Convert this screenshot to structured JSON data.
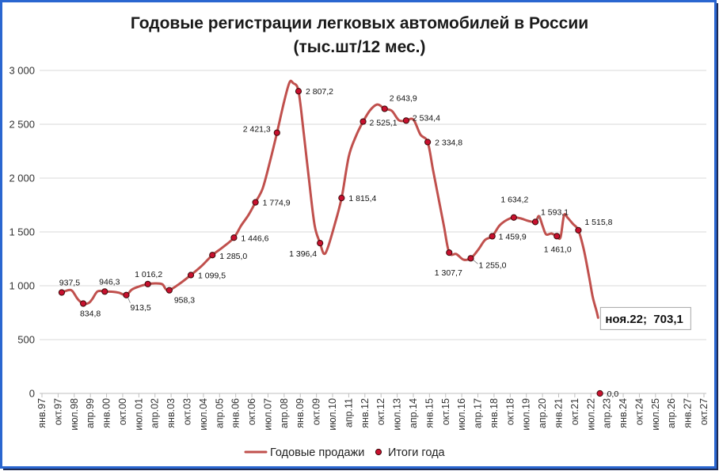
{
  "chart_data": {
    "type": "line",
    "title": "Годовые регистрации легковых автомобилей в России",
    "subtitle": "(тыс.шт/12 мес.)",
    "ylim": [
      0,
      3000
    ],
    "y_ticks": [
      {
        "value": 0,
        "label": "0"
      },
      {
        "value": 500,
        "label": "500"
      },
      {
        "value": 1000,
        "label": "1 000"
      },
      {
        "value": 1500,
        "label": "1 500"
      },
      {
        "value": 2000,
        "label": "2 000"
      },
      {
        "value": 2500,
        "label": "2 500"
      },
      {
        "value": 3000,
        "label": "3 000"
      }
    ],
    "xlim": [
      "1997-01",
      "2027-10"
    ],
    "x_ticks": [
      {
        "date": "1997-01",
        "label": "янв.97"
      },
      {
        "date": "1997-10",
        "label": "окт.97"
      },
      {
        "date": "1998-07",
        "label": "июл.98"
      },
      {
        "date": "1999-04",
        "label": "апр.99"
      },
      {
        "date": "2000-01",
        "label": "янв.00"
      },
      {
        "date": "2000-10",
        "label": "окт.00"
      },
      {
        "date": "2001-07",
        "label": "июл.01"
      },
      {
        "date": "2002-04",
        "label": "апр.02"
      },
      {
        "date": "2003-01",
        "label": "янв.03"
      },
      {
        "date": "2003-10",
        "label": "окт.03"
      },
      {
        "date": "2004-07",
        "label": "июл.04"
      },
      {
        "date": "2005-04",
        "label": "апр.05"
      },
      {
        "date": "2006-01",
        "label": "янв.06"
      },
      {
        "date": "2006-10",
        "label": "окт.06"
      },
      {
        "date": "2007-07",
        "label": "июл.07"
      },
      {
        "date": "2008-04",
        "label": "апр.08"
      },
      {
        "date": "2009-01",
        "label": "янв.09"
      },
      {
        "date": "2009-10",
        "label": "окт.09"
      },
      {
        "date": "2010-07",
        "label": "июл.10"
      },
      {
        "date": "2011-04",
        "label": "апр.11"
      },
      {
        "date": "2012-01",
        "label": "янв.12"
      },
      {
        "date": "2012-10",
        "label": "окт.12"
      },
      {
        "date": "2013-07",
        "label": "июл.13"
      },
      {
        "date": "2014-04",
        "label": "апр.14"
      },
      {
        "date": "2015-01",
        "label": "янв.15"
      },
      {
        "date": "2015-10",
        "label": "окт.15"
      },
      {
        "date": "2016-07",
        "label": "июл.16"
      },
      {
        "date": "2017-04",
        "label": "апр.17"
      },
      {
        "date": "2018-01",
        "label": "янв.18"
      },
      {
        "date": "2018-10",
        "label": "окт.18"
      },
      {
        "date": "2019-07",
        "label": "июл.19"
      },
      {
        "date": "2020-04",
        "label": "апр.20"
      },
      {
        "date": "2021-01",
        "label": "янв.21"
      },
      {
        "date": "2021-10",
        "label": "окт.21"
      },
      {
        "date": "2022-07",
        "label": "июл.22"
      },
      {
        "date": "2023-04",
        "label": "апр.23"
      },
      {
        "date": "2024-01",
        "label": "янв.24"
      },
      {
        "date": "2024-10",
        "label": "окт.24"
      },
      {
        "date": "2025-07",
        "label": "июл.25"
      },
      {
        "date": "2026-04",
        "label": "апр.26"
      },
      {
        "date": "2027-01",
        "label": "янв.27"
      },
      {
        "date": "2027-10",
        "label": "окт.27"
      }
    ],
    "grid": "horizontal",
    "legend_position": "bottom",
    "colors": {
      "line": "#c0504d",
      "marker": "#c8102e",
      "frame": "#2a66d0"
    },
    "series": [
      {
        "name": "Годовые продажи",
        "kind": "line",
        "points": [
          {
            "x": "1997-12",
            "y": 937.5
          },
          {
            "x": "1998-04",
            "y": 960
          },
          {
            "x": "1998-06",
            "y": 950
          },
          {
            "x": "1998-09",
            "y": 875
          },
          {
            "x": "1998-12",
            "y": 834.8
          },
          {
            "x": "1999-03",
            "y": 840
          },
          {
            "x": "1999-05",
            "y": 875
          },
          {
            "x": "1999-08",
            "y": 948
          },
          {
            "x": "1999-12",
            "y": 946.3
          },
          {
            "x": "2000-04",
            "y": 945
          },
          {
            "x": "2000-08",
            "y": 935
          },
          {
            "x": "2000-12",
            "y": 913.5
          },
          {
            "x": "2001-03",
            "y": 963
          },
          {
            "x": "2001-07",
            "y": 993
          },
          {
            "x": "2001-12",
            "y": 1016.2
          },
          {
            "x": "2002-04",
            "y": 1022
          },
          {
            "x": "2002-08",
            "y": 1015
          },
          {
            "x": "2002-10",
            "y": 970
          },
          {
            "x": "2002-12",
            "y": 958.3
          },
          {
            "x": "2003-06",
            "y": 1022
          },
          {
            "x": "2003-12",
            "y": 1099.5
          },
          {
            "x": "2004-06",
            "y": 1184
          },
          {
            "x": "2004-12",
            "y": 1285.0
          },
          {
            "x": "2005-06",
            "y": 1360
          },
          {
            "x": "2005-12",
            "y": 1446.6
          },
          {
            "x": "2006-04",
            "y": 1559
          },
          {
            "x": "2006-08",
            "y": 1654
          },
          {
            "x": "2006-12",
            "y": 1774.9
          },
          {
            "x": "2007-04",
            "y": 1904
          },
          {
            "x": "2007-08",
            "y": 2147
          },
          {
            "x": "2007-12",
            "y": 2421.3
          },
          {
            "x": "2008-04",
            "y": 2713
          },
          {
            "x": "2008-07",
            "y": 2890
          },
          {
            "x": "2008-09",
            "y": 2882
          },
          {
            "x": "2008-12",
            "y": 2807.2
          },
          {
            "x": "2009-03",
            "y": 2404
          },
          {
            "x": "2009-06",
            "y": 1963
          },
          {
            "x": "2009-09",
            "y": 1559
          },
          {
            "x": "2009-12",
            "y": 1396.4
          },
          {
            "x": "2010-02",
            "y": 1300
          },
          {
            "x": "2010-04",
            "y": 1338
          },
          {
            "x": "2010-08",
            "y": 1559
          },
          {
            "x": "2010-12",
            "y": 1815.4
          },
          {
            "x": "2011-04",
            "y": 2199
          },
          {
            "x": "2011-08",
            "y": 2390
          },
          {
            "x": "2011-12",
            "y": 2525.1
          },
          {
            "x": "2012-04",
            "y": 2632
          },
          {
            "x": "2012-08",
            "y": 2684
          },
          {
            "x": "2012-12",
            "y": 2643.9
          },
          {
            "x": "2013-04",
            "y": 2625
          },
          {
            "x": "2013-08",
            "y": 2537
          },
          {
            "x": "2013-12",
            "y": 2534.4
          },
          {
            "x": "2014-04",
            "y": 2544
          },
          {
            "x": "2014-08",
            "y": 2404
          },
          {
            "x": "2014-12",
            "y": 2334.8
          },
          {
            "x": "2015-03",
            "y": 2074
          },
          {
            "x": "2015-06",
            "y": 1816
          },
          {
            "x": "2015-09",
            "y": 1559
          },
          {
            "x": "2015-12",
            "y": 1307.7
          },
          {
            "x": "2016-04",
            "y": 1294
          },
          {
            "x": "2016-08",
            "y": 1243
          },
          {
            "x": "2016-12",
            "y": 1255.0
          },
          {
            "x": "2017-04",
            "y": 1331
          },
          {
            "x": "2017-08",
            "y": 1426
          },
          {
            "x": "2017-12",
            "y": 1459.9
          },
          {
            "x": "2018-04",
            "y": 1559
          },
          {
            "x": "2018-08",
            "y": 1610
          },
          {
            "x": "2018-12",
            "y": 1634.2
          },
          {
            "x": "2019-04",
            "y": 1625
          },
          {
            "x": "2019-08",
            "y": 1603
          },
          {
            "x": "2019-12",
            "y": 1593.1
          },
          {
            "x": "2020-02",
            "y": 1647
          },
          {
            "x": "2020-04",
            "y": 1559
          },
          {
            "x": "2020-06",
            "y": 1478
          },
          {
            "x": "2020-09",
            "y": 1485
          },
          {
            "x": "2020-12",
            "y": 1461.0
          },
          {
            "x": "2021-02",
            "y": 1449
          },
          {
            "x": "2021-04",
            "y": 1654
          },
          {
            "x": "2021-06",
            "y": 1632
          },
          {
            "x": "2021-09",
            "y": 1574
          },
          {
            "x": "2021-12",
            "y": 1515.8
          },
          {
            "x": "2022-03",
            "y": 1338
          },
          {
            "x": "2022-06",
            "y": 1081
          },
          {
            "x": "2022-08",
            "y": 897
          },
          {
            "x": "2022-10",
            "y": 772
          },
          {
            "x": "2022-11",
            "y": 703.1
          }
        ]
      },
      {
        "name": "Итоги года",
        "kind": "markers",
        "points": [
          {
            "x": "1997-12",
            "y": 937.5,
            "label": "937,5"
          },
          {
            "x": "1998-12",
            "y": 834.8,
            "label": "834,8"
          },
          {
            "x": "1999-12",
            "y": 946.3,
            "label": "946,3"
          },
          {
            "x": "2000-12",
            "y": 913.5,
            "label": "913,5"
          },
          {
            "x": "2001-12",
            "y": 1016.2,
            "label": "1 016,2"
          },
          {
            "x": "2002-12",
            "y": 958.3,
            "label": "958,3"
          },
          {
            "x": "2003-12",
            "y": 1099.5,
            "label": "1 099,5"
          },
          {
            "x": "2004-12",
            "y": 1285.0,
            "label": "1 285,0"
          },
          {
            "x": "2005-12",
            "y": 1446.6,
            "label": "1 446,6"
          },
          {
            "x": "2006-12",
            "y": 1774.9,
            "label": "1 774,9"
          },
          {
            "x": "2007-12",
            "y": 2421.3,
            "label": "2 421,3"
          },
          {
            "x": "2008-12",
            "y": 2807.2,
            "label": "2 807,2"
          },
          {
            "x": "2009-12",
            "y": 1396.4,
            "label": "1 396,4"
          },
          {
            "x": "2010-12",
            "y": 1815.4,
            "label": "1 815,4"
          },
          {
            "x": "2011-12",
            "y": 2525.1,
            "label": "2 525,1"
          },
          {
            "x": "2012-12",
            "y": 2643.9,
            "label": "2 643,9"
          },
          {
            "x": "2013-12",
            "y": 2534.4,
            "label": "2 534,4"
          },
          {
            "x": "2014-12",
            "y": 2334.8,
            "label": "2 334,8"
          },
          {
            "x": "2015-12",
            "y": 1307.7,
            "label": "1 307,7"
          },
          {
            "x": "2016-12",
            "y": 1255.0,
            "label": "1 255,0"
          },
          {
            "x": "2017-12",
            "y": 1459.9,
            "label": "1 459,9"
          },
          {
            "x": "2018-12",
            "y": 1634.2,
            "label": "1 634,2"
          },
          {
            "x": "2019-12",
            "y": 1593.1,
            "label": "1 593,1"
          },
          {
            "x": "2020-12",
            "y": 1461.0,
            "label": "1 461,0"
          },
          {
            "x": "2021-12",
            "y": 1515.8,
            "label": "1 515,8"
          },
          {
            "x": "2022-12",
            "y": 0.0,
            "label": "0,0"
          }
        ]
      }
    ],
    "callout": {
      "x": "2022-11",
      "y": 703.1,
      "text": "ноя.22;  703,1"
    }
  }
}
